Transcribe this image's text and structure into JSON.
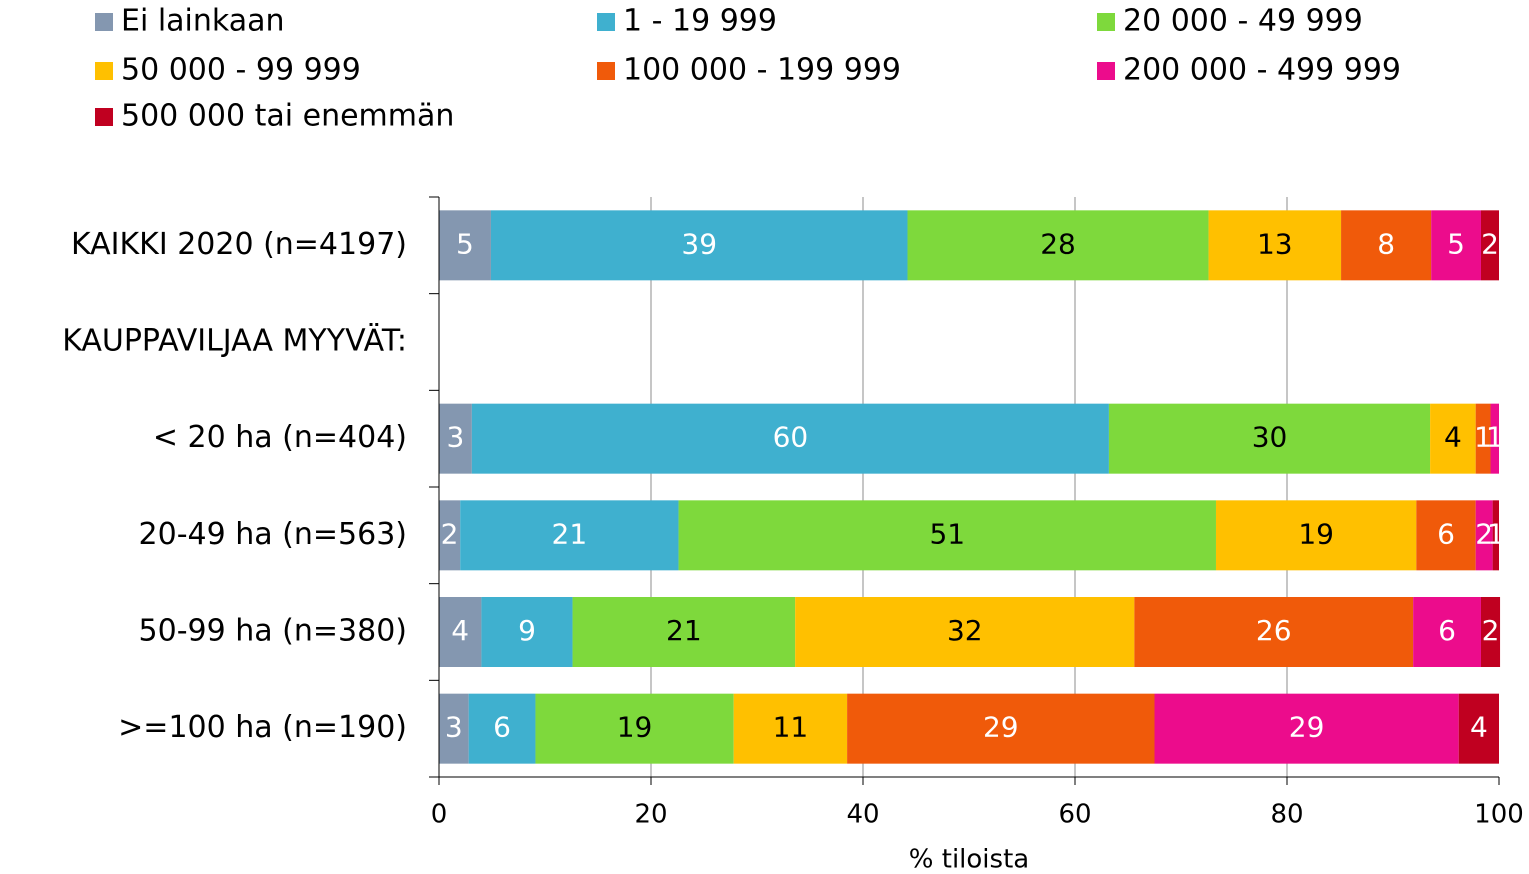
{
  "chart_data": {
    "type": "stacked-barh",
    "xlabel": "% tiloista",
    "categories": [
      "KAIKKI 2020 (n=4197)",
      "KAUPPAVILJAA MYYVÄT:",
      "< 20 ha (n=404)",
      "20-49 ha (n=563)",
      "50-99 ha (n=380)",
      ">=100 ha (n=190)"
    ],
    "series": [
      {
        "name": "Ei lainkaan",
        "color": "#8497b0",
        "label_color": "#ffffff",
        "values": [
          4.9,
          null,
          3.1,
          2.0,
          4.0,
          2.8
        ],
        "value_labels": [
          "5",
          null,
          "3",
          "2",
          "4",
          "3"
        ]
      },
      {
        "name": "1 - 19 999",
        "color": "#3fb0cf",
        "label_color": "#ffffff",
        "values": [
          39.3,
          null,
          60.1,
          20.6,
          8.6,
          6.3
        ],
        "value_labels": [
          "39",
          null,
          "60",
          "21",
          "9",
          "6"
        ]
      },
      {
        "name": "20 000 - 49 999",
        "color": "#7ed93c",
        "label_color": "#000000",
        "values": [
          28.4,
          null,
          30.3,
          50.7,
          21.0,
          18.7
        ],
        "value_labels": [
          "28",
          null,
          "30",
          "51",
          "21",
          "19"
        ]
      },
      {
        "name": "50 000 - 99 999",
        "color": "#ffc000",
        "label_color": "#000000",
        "values": [
          12.5,
          null,
          4.3,
          18.9,
          32.0,
          10.7
        ],
        "value_labels": [
          "13",
          null,
          "4",
          "19",
          "32",
          "11"
        ]
      },
      {
        "name": "100 000 - 199 999",
        "color": "#f05a0a",
        "label_color": "#ffffff",
        "values": [
          8.5,
          null,
          1.4,
          5.6,
          26.3,
          29.0
        ],
        "value_labels": [
          "8",
          null,
          "1",
          "6",
          "26",
          "29"
        ]
      },
      {
        "name": "200 000 - 499 999",
        "color": "#ec0c8c",
        "label_color": "#ffffff",
        "values": [
          4.7,
          null,
          0.8,
          1.6,
          6.4,
          28.7
        ],
        "value_labels": [
          "5",
          null,
          "1",
          "2",
          "6",
          "29"
        ]
      },
      {
        "name": "500 000 tai enemmän",
        "color": "#c00020",
        "label_color": "#ffffff",
        "values": [
          1.7,
          null,
          0,
          0.6,
          1.8,
          3.8
        ],
        "value_labels": [
          "2",
          null,
          null,
          "1",
          "2",
          "4"
        ]
      }
    ],
    "xlim": [
      0,
      100
    ],
    "xticks": [
      0,
      20,
      40,
      60,
      80,
      100
    ],
    "grid": true
  }
}
